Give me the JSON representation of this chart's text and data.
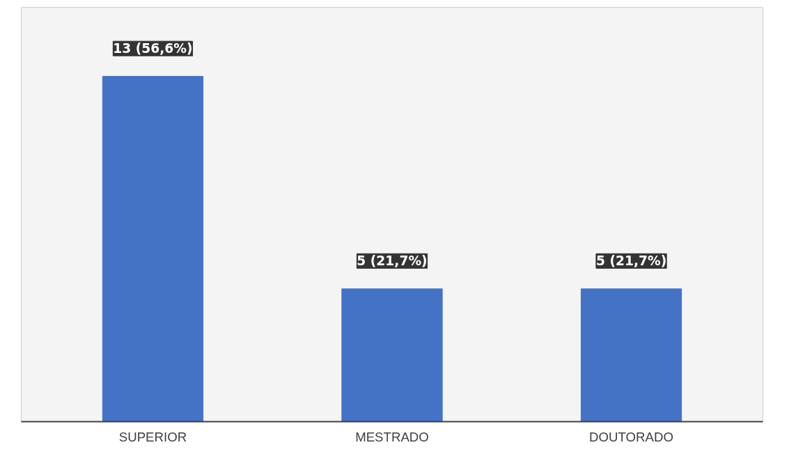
{
  "chart_data": {
    "type": "bar",
    "categories": [
      "SUPERIOR",
      "MESTRADO",
      "DOUTORADO"
    ],
    "values": [
      13,
      5,
      5
    ],
    "color": "#4472c4",
    "value_labels": [
      "13 (56,6%)",
      "5 (21,7%)",
      "5 (21,7%)"
    ]
  }
}
